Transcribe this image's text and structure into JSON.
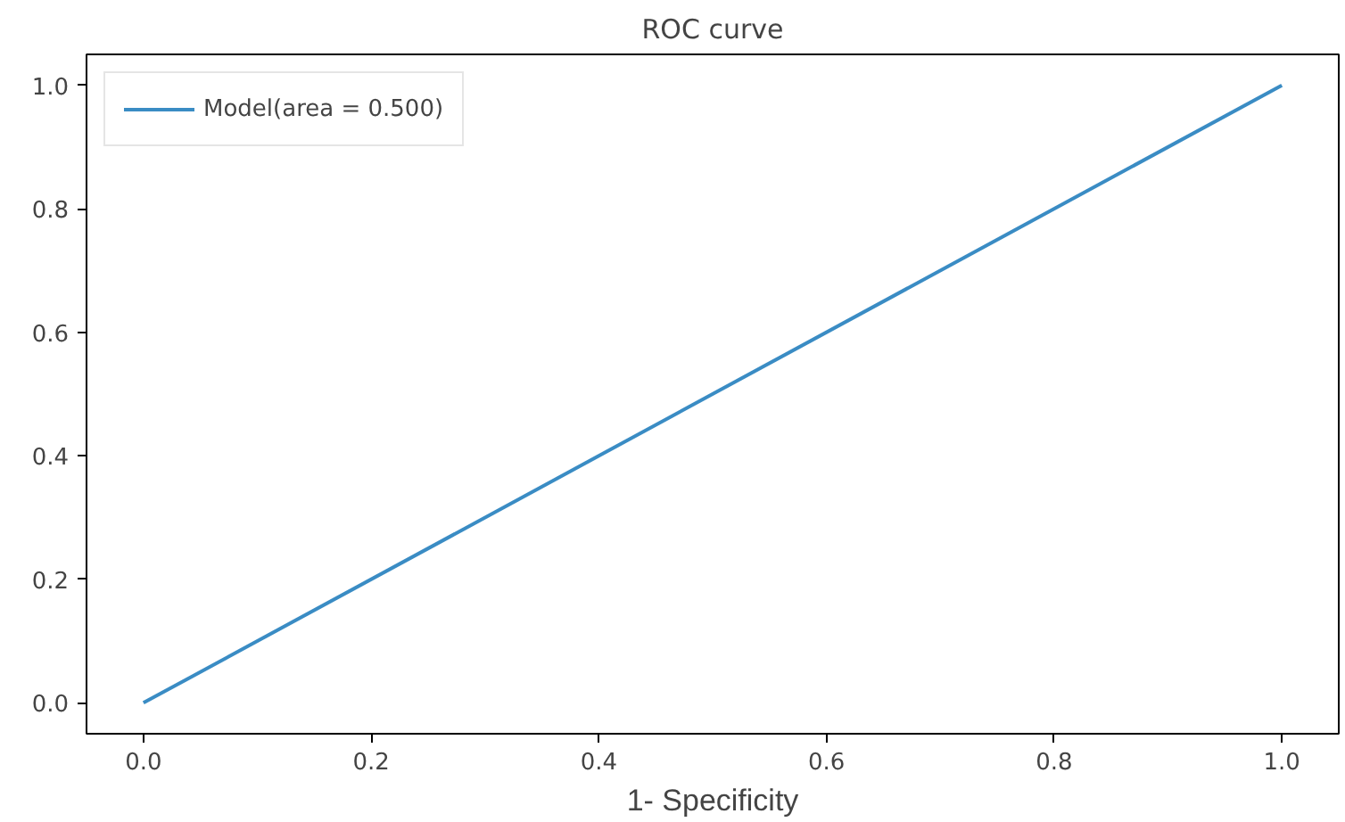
{
  "chart_data": {
    "type": "line",
    "title": "ROC curve",
    "xlabel": "1- Specificity",
    "x": [
      0,
      1
    ],
    "series": [
      {
        "name": "Model(area = 0.500)",
        "color": "#3a8cc4",
        "values": [
          0,
          1
        ]
      }
    ],
    "xlim": [
      -0.05,
      1.05
    ],
    "ylim": [
      -0.05,
      1.05
    ],
    "xticks": [
      {
        "value": 0,
        "label": "0.0"
      },
      {
        "value": 0.2,
        "label": "0.2"
      },
      {
        "value": 0.4,
        "label": "0.4"
      },
      {
        "value": 0.6,
        "label": "0.6"
      },
      {
        "value": 0.8,
        "label": "0.8"
      },
      {
        "value": 1,
        "label": "1.0"
      }
    ],
    "yticks": [
      {
        "value": 0,
        "label": "0.0"
      },
      {
        "value": 0.2,
        "label": "0.2"
      },
      {
        "value": 0.4,
        "label": "0.4"
      },
      {
        "value": 0.6,
        "label": "0.6"
      },
      {
        "value": 0.8,
        "label": "0.8"
      },
      {
        "value": 1,
        "label": "1.0"
      }
    ],
    "grid": false,
    "legend": "top left",
    "marker": "none",
    "line_style": "solid"
  }
}
